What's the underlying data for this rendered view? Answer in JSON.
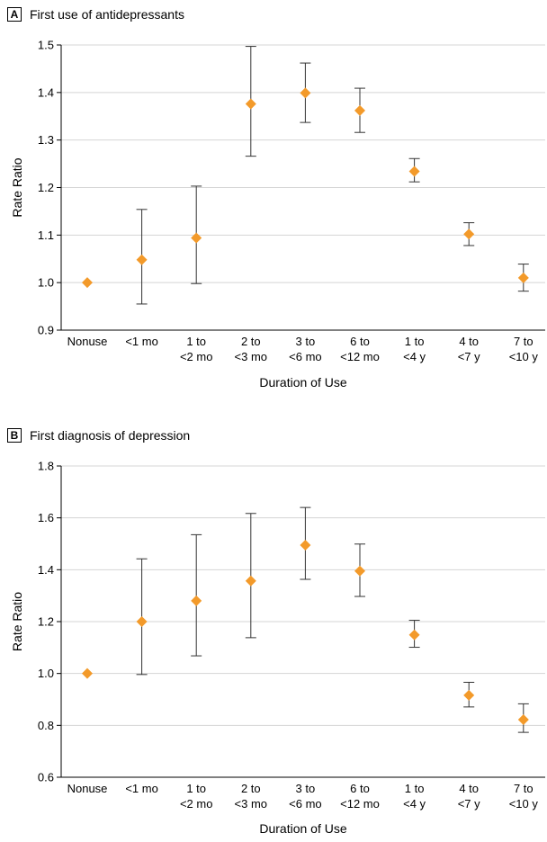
{
  "chart_data": [
    {
      "type": "scatter",
      "panel_letter": "A",
      "title": "First use of antidepressants",
      "xlabel": "Duration of Use",
      "ylabel": "Rate Ratio",
      "ylim": [
        0.9,
        1.5
      ],
      "yticks": [
        "0.9",
        "1.0",
        "1.1",
        "1.2",
        "1.3",
        "1.4",
        "1.5"
      ],
      "categories": [
        [
          "Nonuse"
        ],
        [
          "<1 mo"
        ],
        [
          "1 to",
          "<2 mo"
        ],
        [
          "2 to",
          "<3 mo"
        ],
        [
          "3 to",
          "<6 mo"
        ],
        [
          "6 to",
          "<12 mo"
        ],
        [
          "1 to",
          "<4 y"
        ],
        [
          "4 to",
          "<7 y"
        ],
        [
          "7 to",
          "<10 y"
        ]
      ],
      "values": [
        1.0,
        1.048,
        1.094,
        1.376,
        1.399,
        1.362,
        1.234,
        1.102,
        1.01
      ],
      "lower": [
        null,
        0.955,
        0.998,
        1.266,
        1.337,
        1.316,
        1.212,
        1.078,
        0.982
      ],
      "upper": [
        null,
        1.154,
        1.203,
        1.497,
        1.462,
        1.409,
        1.261,
        1.126,
        1.039
      ],
      "grid": true,
      "marker_color": "#f39a2a"
    },
    {
      "type": "scatter",
      "panel_letter": "B",
      "title": "First diagnosis of depression",
      "xlabel": "Duration of Use",
      "ylabel": "Rate Ratio",
      "ylim": [
        0.6,
        1.8
      ],
      "yticks": [
        "0.6",
        "0.8",
        "1.0",
        "1.2",
        "1.4",
        "1.6",
        "1.8"
      ],
      "categories": [
        [
          "Nonuse"
        ],
        [
          "<1 mo"
        ],
        [
          "1 to",
          "<2 mo"
        ],
        [
          "2 to",
          "<3 mo"
        ],
        [
          "3 to",
          "<6 mo"
        ],
        [
          "6 to",
          "<12 mo"
        ],
        [
          "1 to",
          "<4 y"
        ],
        [
          "4 to",
          "<7 y"
        ],
        [
          "7 to",
          "<10 y"
        ]
      ],
      "values": [
        1.0,
        1.2,
        1.28,
        1.357,
        1.495,
        1.395,
        1.149,
        0.916,
        0.822
      ],
      "lower": [
        null,
        0.996,
        1.068,
        1.138,
        1.363,
        1.297,
        1.101,
        0.871,
        0.773
      ],
      "upper": [
        null,
        1.442,
        1.535,
        1.617,
        1.64,
        1.499,
        1.205,
        0.966,
        0.883
      ],
      "grid": true,
      "marker_color": "#f39a2a"
    }
  ]
}
